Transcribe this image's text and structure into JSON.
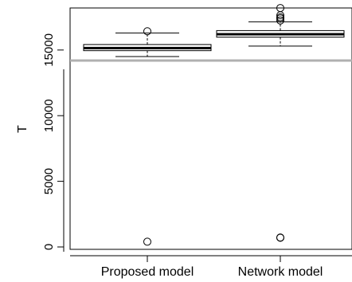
{
  "chart_data": {
    "type": "boxplot",
    "title": "",
    "xlabel": "",
    "ylabel": "T",
    "ylim": [
      -500,
      19000
    ],
    "yticks": [
      0,
      5000,
      10000,
      15000
    ],
    "ytick_labels": [
      "0",
      "5000",
      "10000",
      "15000"
    ],
    "categories": [
      "Proposed model",
      "Network model"
    ],
    "boxes": [
      {
        "name": "Proposed model",
        "whisker_low": 14500,
        "q1": 14950,
        "median": 15150,
        "q3": 15420,
        "whisker_high": 16300,
        "outliers": [
          16430,
          400
        ]
      },
      {
        "name": "Network model",
        "whisker_low": 15300,
        "q1": 15980,
        "median": 16200,
        "q3": 16480,
        "whisker_high": 17150,
        "outliers": [
          17250,
          17400,
          17500,
          17650,
          18200,
          700,
          720
        ]
      }
    ],
    "reference_line": {
      "value": 14200,
      "color": "#b0b0b0"
    },
    "grid": false
  }
}
